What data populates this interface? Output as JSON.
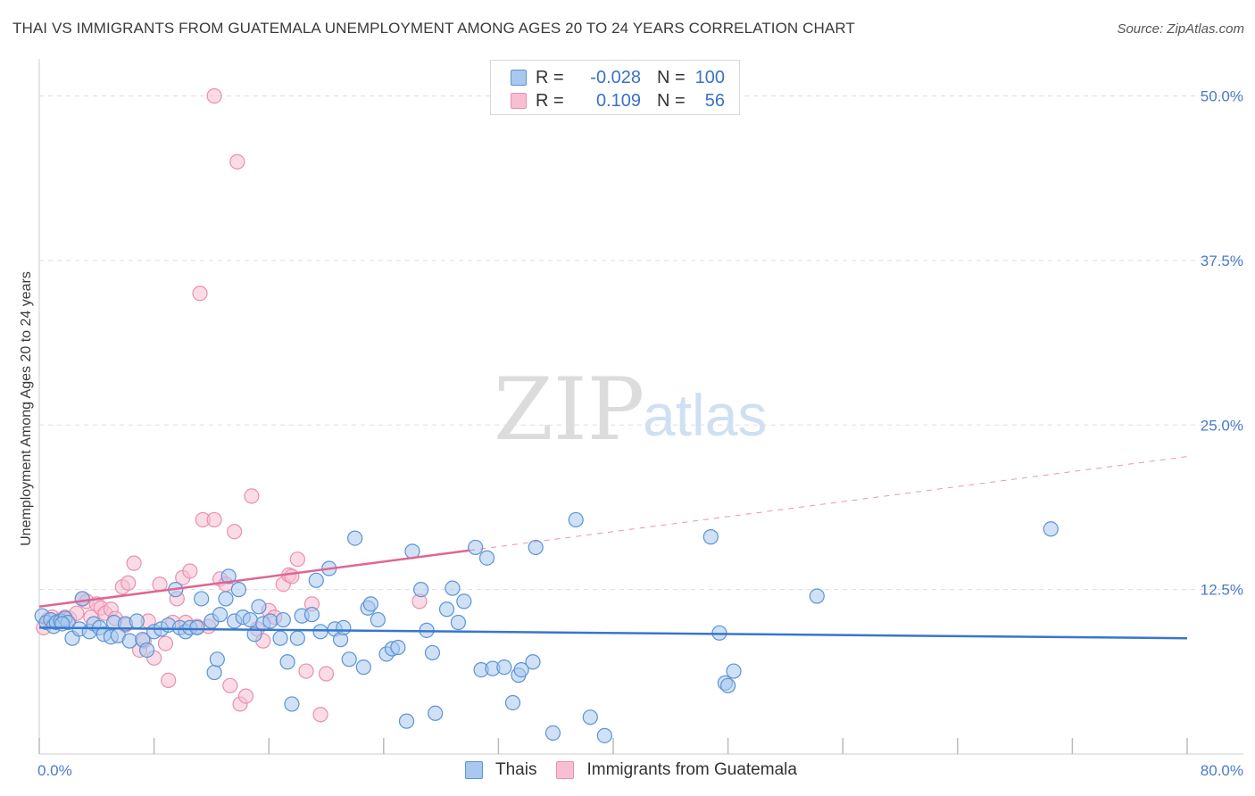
{
  "title": "THAI VS IMMIGRANTS FROM GUATEMALA UNEMPLOYMENT AMONG AGES 20 TO 24 YEARS CORRELATION CHART",
  "source": "Source: ZipAtlas.com",
  "watermark": {
    "zip": "ZIP",
    "atlas": "atlas"
  },
  "colors": {
    "blue_fill": "#a9c8ef",
    "blue_stroke": "#5b93d6",
    "blue_line": "#3677cc",
    "pink_fill": "#f7bfd1",
    "pink_stroke": "#e98fae",
    "pink_line": "#e06593",
    "axis_label": "#4a7cc7",
    "grid": "#dddddd"
  },
  "legend": {
    "rows": [
      {
        "r_label": "R =",
        "r_value": "-0.028",
        "n_label": "N =",
        "n_value": "100"
      },
      {
        "r_label": "R =",
        "r_value": "0.109",
        "n_label": "N =",
        "n_value": "56"
      }
    ]
  },
  "bottom_legend": {
    "items": [
      "Thais",
      "Immigrants from Guatemala"
    ]
  },
  "chart_data": {
    "type": "scatter",
    "title": "THAI VS IMMIGRANTS FROM GUATEMALA UNEMPLOYMENT AMONG AGES 20 TO 24 YEARS CORRELATION CHART",
    "xlabel": "",
    "ylabel": "Unemployment Among Ages 20 to 24 years",
    "xlim": [
      0,
      80
    ],
    "ylim": [
      0,
      52
    ],
    "x_tick_labels": [
      "0.0%",
      "80.0%"
    ],
    "y_ticks": [
      12.5,
      25.0,
      37.5,
      50.0
    ],
    "y_tick_labels": [
      "12.5%",
      "25.0%",
      "37.5%",
      "50.0%"
    ],
    "legend_position": "top-center",
    "series": [
      {
        "name": "Thais",
        "r": -0.028,
        "n": 100,
        "trend": {
          "x": [
            0,
            80
          ],
          "y": [
            9.6,
            8.8
          ],
          "style": "solid"
        },
        "points": [
          [
            0.2,
            10.5
          ],
          [
            0.5,
            10.0
          ],
          [
            0.8,
            10.2
          ],
          [
            1.0,
            9.7
          ],
          [
            1.2,
            10.0
          ],
          [
            1.5,
            10.1
          ],
          [
            1.8,
            10.3
          ],
          [
            2.0,
            10.0
          ],
          [
            2.3,
            8.8
          ],
          [
            2.8,
            9.5
          ],
          [
            3.0,
            11.8
          ],
          [
            3.5,
            9.3
          ],
          [
            3.8,
            9.9
          ],
          [
            4.2,
            9.6
          ],
          [
            4.5,
            9.1
          ],
          [
            5.0,
            8.9
          ],
          [
            5.2,
            10.0
          ],
          [
            5.5,
            9.0
          ],
          [
            6.0,
            9.9
          ],
          [
            6.3,
            8.6
          ],
          [
            6.8,
            10.1
          ],
          [
            7.2,
            8.7
          ],
          [
            7.5,
            7.9
          ],
          [
            8.0,
            9.3
          ],
          [
            8.5,
            9.5
          ],
          [
            9.0,
            9.8
          ],
          [
            9.5,
            12.5
          ],
          [
            9.8,
            9.6
          ],
          [
            10.2,
            9.3
          ],
          [
            10.5,
            9.6
          ],
          [
            11.0,
            9.6
          ],
          [
            11.3,
            11.8
          ],
          [
            12.0,
            10.1
          ],
          [
            12.2,
            6.2
          ],
          [
            12.4,
            7.2
          ],
          [
            12.6,
            10.6
          ],
          [
            13.0,
            11.8
          ],
          [
            13.2,
            13.5
          ],
          [
            13.6,
            10.1
          ],
          [
            13.9,
            12.5
          ],
          [
            14.2,
            10.4
          ],
          [
            14.7,
            10.2
          ],
          [
            15.0,
            9.1
          ],
          [
            15.3,
            11.2
          ],
          [
            15.6,
            9.9
          ],
          [
            16.1,
            10.1
          ],
          [
            16.8,
            8.8
          ],
          [
            17.0,
            10.2
          ],
          [
            17.3,
            7.0
          ],
          [
            17.6,
            3.8
          ],
          [
            18.0,
            8.8
          ],
          [
            18.3,
            10.5
          ],
          [
            19.0,
            10.6
          ],
          [
            19.3,
            13.2
          ],
          [
            19.6,
            9.3
          ],
          [
            20.2,
            14.1
          ],
          [
            20.6,
            9.5
          ],
          [
            21.0,
            8.7
          ],
          [
            21.2,
            9.6
          ],
          [
            21.6,
            7.2
          ],
          [
            22.0,
            16.4
          ],
          [
            22.6,
            6.6
          ],
          [
            22.9,
            11.1
          ],
          [
            23.1,
            11.4
          ],
          [
            23.6,
            10.2
          ],
          [
            24.2,
            7.6
          ],
          [
            24.6,
            8.0
          ],
          [
            25.0,
            8.1
          ],
          [
            25.6,
            2.5
          ],
          [
            26.0,
            15.4
          ],
          [
            26.6,
            12.5
          ],
          [
            27.0,
            9.4
          ],
          [
            27.4,
            7.7
          ],
          [
            27.6,
            3.1
          ],
          [
            28.4,
            11.0
          ],
          [
            28.8,
            12.6
          ],
          [
            29.2,
            10.0
          ],
          [
            29.6,
            11.6
          ],
          [
            30.4,
            15.7
          ],
          [
            30.8,
            6.4
          ],
          [
            31.2,
            14.9
          ],
          [
            31.6,
            6.5
          ],
          [
            32.4,
            6.6
          ],
          [
            33.0,
            3.9
          ],
          [
            33.4,
            6.0
          ],
          [
            33.6,
            6.4
          ],
          [
            34.4,
            7.0
          ],
          [
            34.6,
            15.7
          ],
          [
            35.8,
            1.6
          ],
          [
            37.4,
            17.8
          ],
          [
            38.4,
            2.8
          ],
          [
            39.4,
            1.4
          ],
          [
            46.8,
            16.5
          ],
          [
            47.4,
            9.2
          ],
          [
            47.8,
            5.4
          ],
          [
            48.0,
            5.2
          ],
          [
            48.4,
            6.3
          ],
          [
            54.2,
            12.0
          ],
          [
            70.5,
            17.1
          ],
          [
            1.6,
            9.9
          ]
        ]
      },
      {
        "name": "Immigrants from Guatemala",
        "r": 0.109,
        "n": 56,
        "trend": {
          "x": [
            0,
            80
          ],
          "y": [
            11.2,
            22.6
          ],
          "style": "solid-then-dashed",
          "solid_until_x": 30
        },
        "points": [
          [
            0.3,
            9.6
          ],
          [
            0.6,
            10.2
          ],
          [
            0.9,
            10.4
          ],
          [
            1.2,
            10.0
          ],
          [
            1.5,
            10.2
          ],
          [
            1.8,
            10.4
          ],
          [
            2.1,
            10.3
          ],
          [
            2.6,
            10.7
          ],
          [
            3.0,
            11.8
          ],
          [
            3.3,
            11.6
          ],
          [
            3.6,
            10.4
          ],
          [
            4.0,
            11.4
          ],
          [
            4.3,
            11.1
          ],
          [
            4.6,
            10.7
          ],
          [
            5.0,
            11.0
          ],
          [
            5.3,
            10.3
          ],
          [
            5.8,
            12.7
          ],
          [
            6.0,
            9.8
          ],
          [
            6.2,
            13.0
          ],
          [
            6.6,
            14.5
          ],
          [
            7.0,
            7.9
          ],
          [
            7.3,
            8.6
          ],
          [
            7.6,
            10.1
          ],
          [
            8.0,
            7.3
          ],
          [
            8.4,
            12.9
          ],
          [
            8.8,
            8.4
          ],
          [
            9.0,
            5.6
          ],
          [
            9.3,
            10.0
          ],
          [
            9.6,
            11.8
          ],
          [
            10.0,
            13.4
          ],
          [
            10.2,
            10.0
          ],
          [
            10.5,
            13.9
          ],
          [
            11.0,
            9.7
          ],
          [
            11.4,
            17.8
          ],
          [
            11.8,
            9.7
          ],
          [
            12.2,
            17.8
          ],
          [
            12.6,
            13.3
          ],
          [
            13.0,
            12.9
          ],
          [
            13.3,
            5.2
          ],
          [
            13.6,
            16.9
          ],
          [
            14.0,
            3.8
          ],
          [
            14.4,
            4.4
          ],
          [
            14.8,
            19.6
          ],
          [
            15.2,
            9.5
          ],
          [
            15.6,
            8.6
          ],
          [
            16.0,
            10.9
          ],
          [
            16.4,
            10.4
          ],
          [
            17.0,
            12.9
          ],
          [
            17.4,
            13.6
          ],
          [
            17.6,
            13.5
          ],
          [
            18.0,
            14.8
          ],
          [
            19.0,
            11.4
          ],
          [
            19.6,
            3.0
          ],
          [
            20.0,
            6.1
          ],
          [
            26.5,
            11.6
          ],
          [
            18.6,
            6.3
          ]
        ]
      }
    ],
    "outlier_points_guatemala": [
      [
        12.2,
        50.0
      ],
      [
        13.8,
        45.0
      ],
      [
        11.2,
        35.0
      ]
    ]
  }
}
